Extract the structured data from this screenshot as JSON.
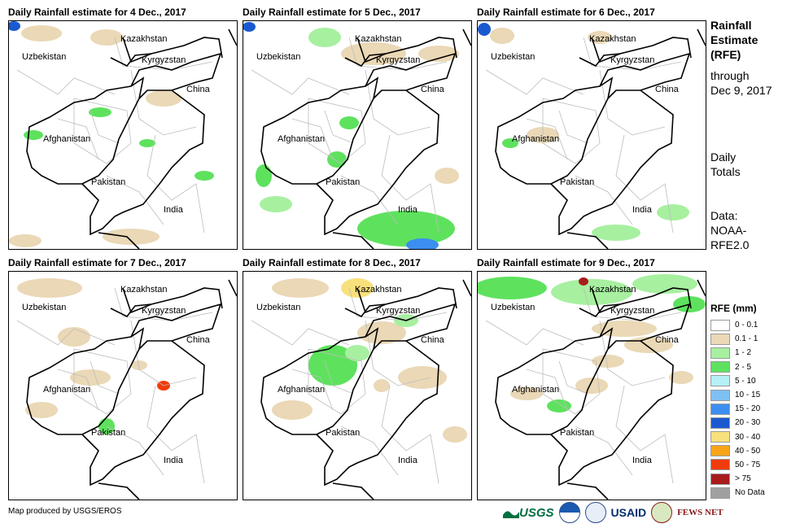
{
  "panels": [
    {
      "title": "Daily Rainfall estimate for 4 Dec., 2017"
    },
    {
      "title": "Daily Rainfall estimate for 5 Dec., 2017"
    },
    {
      "title": "Daily Rainfall estimate for 6 Dec., 2017"
    },
    {
      "title": "Daily Rainfall estimate for 7 Dec., 2017"
    },
    {
      "title": "Daily Rainfall estimate for 8 Dec., 2017"
    },
    {
      "title": "Daily Rainfall estimate for 9 Dec., 2017"
    }
  ],
  "place_labels": {
    "kazakhstan": "Kazakhstan",
    "uzbekistan": "Uzbekistan",
    "kyrgyzstan": "Kyrgyzstan",
    "china": "China",
    "afghanistan": "Afghanistan",
    "pakistan": "Pakistan",
    "india": "India"
  },
  "sidebar": {
    "title_line1": "Rainfall",
    "title_line2": "Estimate",
    "title_line3": "(RFE)",
    "through_line1": "through",
    "through_line2": "Dec 9, 2017",
    "totals_line1": "Daily",
    "totals_line2": "Totals",
    "data_line1": "Data:",
    "data_line2": "NOAA-",
    "data_line3": "RFE2.0"
  },
  "legend": {
    "title": "RFE (mm)",
    "items": [
      {
        "label": "0 - 0.1",
        "color": "#ffffff"
      },
      {
        "label": "0.1 - 1",
        "color": "#ead8b6"
      },
      {
        "label": "1 - 2",
        "color": "#a7f0a0"
      },
      {
        "label": "2 - 5",
        "color": "#5ee25e"
      },
      {
        "label": "5 - 10",
        "color": "#b4f0f6"
      },
      {
        "label": "10 - 15",
        "color": "#7ec0f2"
      },
      {
        "label": "15 - 20",
        "color": "#3c8ef0"
      },
      {
        "label": "20 - 30",
        "color": "#1a5ad0"
      },
      {
        "label": "30 - 40",
        "color": "#f8e07c"
      },
      {
        "label": "40 - 50",
        "color": "#f8a418"
      },
      {
        "label": "50 - 75",
        "color": "#f03c0c"
      },
      {
        "label": "> 75",
        "color": "#a81c1c"
      },
      {
        "label": "No Data",
        "color": "#a0a0a0"
      }
    ]
  },
  "footer": {
    "credit": "Map produced by USGS/EROS",
    "logo_usgs": "USGS",
    "logo_usaid": "USAID",
    "logo_fews": "FEWS NET"
  }
}
